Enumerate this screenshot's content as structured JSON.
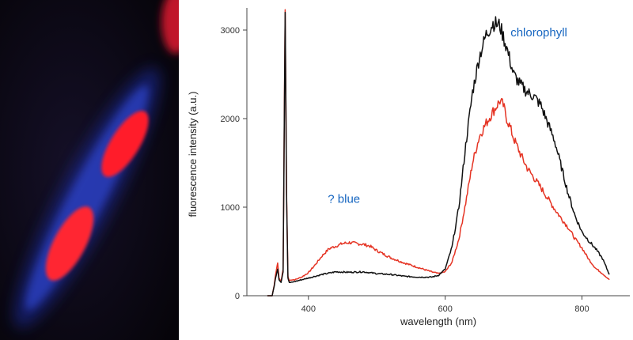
{
  "chart_data": {
    "type": "line",
    "xlabel": "wavelength (nm)",
    "ylabel": "fluorescence intensity (a.u.)",
    "xlim": [
      310,
      870
    ],
    "ylim": [
      0,
      3250
    ],
    "xticks": [
      400,
      600,
      800
    ],
    "yticks": [
      0,
      1000,
      2000,
      3000
    ],
    "grid": false,
    "annotations": [
      {
        "text": "? blue",
        "x": 452,
        "y": 1050,
        "color": "#1565c0"
      },
      {
        "text": "chlorophyll",
        "x": 737,
        "y": 2930,
        "color": "#1565c0"
      }
    ],
    "series": [
      {
        "color": "#e53424",
        "x": [
          340,
          347,
          350,
          352,
          355,
          357,
          360,
          363,
          366,
          368,
          370,
          372,
          375,
          380,
          390,
          400,
          410,
          420,
          430,
          440,
          450,
          460,
          470,
          480,
          490,
          500,
          520,
          540,
          560,
          580,
          590,
          600,
          610,
          620,
          630,
          640,
          650,
          660,
          670,
          680,
          685,
          690,
          695,
          700,
          710,
          720,
          730,
          740,
          750,
          760,
          770,
          780,
          790,
          800,
          810,
          820,
          830,
          840
        ],
        "y": [
          0,
          0,
          120,
          240,
          370,
          200,
          160,
          300,
          3230,
          1200,
          220,
          170,
          180,
          180,
          210,
          260,
          350,
          450,
          530,
          560,
          590,
          600,
          590,
          580,
          560,
          510,
          430,
          370,
          320,
          270,
          250,
          270,
          380,
          640,
          1050,
          1500,
          1800,
          1950,
          2080,
          2200,
          2150,
          2000,
          1900,
          1780,
          1600,
          1440,
          1330,
          1220,
          1100,
          980,
          870,
          770,
          640,
          540,
          410,
          310,
          250,
          180
        ]
      },
      {
        "color": "#111111",
        "x": [
          340,
          347,
          350,
          352,
          355,
          357,
          360,
          363,
          366,
          368,
          370,
          372,
          375,
          380,
          400,
          420,
          440,
          460,
          480,
          500,
          520,
          540,
          560,
          580,
          590,
          600,
          610,
          620,
          630,
          640,
          650,
          660,
          670,
          680,
          690,
          700,
          710,
          720,
          730,
          740,
          750,
          760,
          770,
          780,
          790,
          800,
          810,
          820,
          830,
          840
        ],
        "y": [
          0,
          0,
          110,
          200,
          300,
          180,
          150,
          270,
          3200,
          1150,
          200,
          150,
          150,
          160,
          200,
          240,
          270,
          265,
          270,
          250,
          240,
          220,
          210,
          210,
          230,
          300,
          550,
          1000,
          1700,
          2300,
          2700,
          2950,
          3080,
          3050,
          2800,
          2500,
          2380,
          2300,
          2250,
          2150,
          1950,
          1750,
          1450,
          1150,
          900,
          720,
          620,
          530,
          420,
          240
        ]
      }
    ]
  },
  "image": {
    "kind": "fluorescence micrograph",
    "colors": {
      "background": "#0b0914",
      "chloroplast": "#ff2a2a",
      "cell_blue": "#2746e0"
    }
  }
}
